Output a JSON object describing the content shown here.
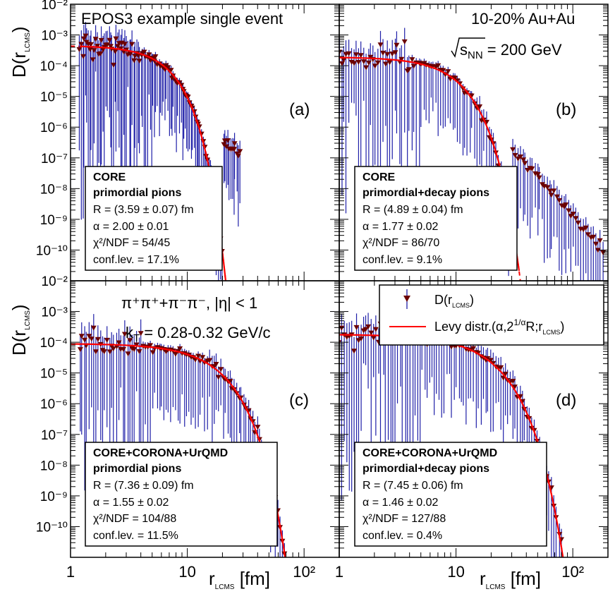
{
  "figure": {
    "title_text": "EPOS3 example single event",
    "system_text": "10-20% Au+Au",
    "energy_prefix": "s",
    "energy_sub": "NN",
    "energy_value": " = 200 GeV",
    "particles_text": "π⁺π⁺+π⁻π⁻, |η| < 1",
    "kt_prefix": "k",
    "kt_sub": "T",
    "kt_value": " = 0.28-0.32 GeV/c",
    "ylabel_main": "D(r",
    "ylabel_sub": "LCMS",
    "ylabel_close": ")",
    "xlabel_main": "r",
    "xlabel_sub": "LCMS",
    "xlabel_unit": " [fm]",
    "legend": {
      "points_main": "D(r",
      "points_sub": "LCMS",
      "points_close": ")",
      "fit_text": "Levy distr.(α,2",
      "fit_sup": "1/α",
      "fit_text2": "R;r",
      "fit_sub": "LCMS",
      "fit_close": ")"
    },
    "colors": {
      "points": "#6b0000",
      "errors": "#1f1fa8",
      "fit": "#ff0000",
      "frame": "#000000"
    }
  },
  "chart_data": [
    {
      "type": "scatter",
      "panel_label": "(a)",
      "x_scale": "log",
      "y_scale": "log",
      "xlim": [
        1,
        200
      ],
      "ylim": [
        1e-11,
        0.01
      ],
      "x_ticks": [
        {
          "v": 1,
          "t": "1"
        },
        {
          "v": 10,
          "t": "10"
        },
        {
          "v": 100,
          "t": "10²"
        }
      ],
      "y_ticks": [
        "10⁻¹⁰",
        "10⁻⁹",
        "10⁻⁸",
        "10⁻⁷",
        "10⁻⁶",
        "10⁻⁵",
        "10⁻⁴",
        "10⁻³",
        "10⁻²"
      ],
      "fit": {
        "R": 3.59,
        "alpha": 2.0,
        "N": 0.00045,
        "fit_range": [
          1.2,
          25
        ]
      },
      "points_range": [
        1.2,
        28
      ],
      "info": {
        "line1": "CORE",
        "line2": "primordial pions",
        "line3": "R = (3.59 ± 0.07) fm",
        "line4": "α = 2.00 ± 0.01",
        "line5": "χ²/NDF = 54/45",
        "line6": "conf.lev. = 17.1%"
      }
    },
    {
      "type": "scatter",
      "panel_label": "(b)",
      "x_scale": "log",
      "y_scale": "log",
      "xlim": [
        1,
        200
      ],
      "ylim": [
        1e-11,
        0.01
      ],
      "x_ticks": [
        {
          "v": 1,
          "t": "1"
        },
        {
          "v": 10,
          "t": "10"
        },
        {
          "v": 100,
          "t": "10²"
        }
      ],
      "y_ticks": [
        "10⁻¹⁰",
        "10⁻⁹",
        "10⁻⁸",
        "10⁻⁷",
        "10⁻⁶",
        "10⁻⁵",
        "10⁻⁴",
        "10⁻³",
        "10⁻²"
      ],
      "fit": {
        "R": 4.89,
        "alpha": 1.77,
        "N": 0.00019,
        "fit_range": [
          1.0,
          35
        ]
      },
      "points_range": [
        1.0,
        180
      ],
      "info": {
        "line1": "CORE",
        "line2": "primordial+decay pions",
        "line3": "R = (4.89 ± 0.04) fm",
        "line4": "α = 1.77 ± 0.02",
        "line5": "χ²/NDF = 86/70",
        "line6": "conf.lev. = 9.1%"
      }
    },
    {
      "type": "scatter",
      "panel_label": "(c)",
      "x_scale": "log",
      "y_scale": "log",
      "xlim": [
        1,
        200
      ],
      "ylim": [
        1e-11,
        0.01
      ],
      "x_ticks": [
        {
          "v": 1,
          "t": "1"
        },
        {
          "v": 10,
          "t": "10"
        },
        {
          "v": 100,
          "t": "10²"
        }
      ],
      "y_ticks": [
        "10⁻¹⁰",
        "10⁻⁹",
        "10⁻⁸",
        "10⁻⁷",
        "10⁻⁶",
        "10⁻⁵",
        "10⁻⁴",
        "10⁻³",
        "10⁻²"
      ],
      "fit": {
        "R": 7.36,
        "alpha": 1.55,
        "N": 9e-05,
        "fit_range": [
          1.0,
          200
        ]
      },
      "points_range": [
        1.2,
        160
      ],
      "info": {
        "line1": "CORE+CORONA+UrQMD",
        "line2": "primordial pions",
        "line3": "R = (7.36 ± 0.09) fm",
        "line4": "α = 1.55 ± 0.02",
        "line5": "χ²/NDF = 104/88",
        "line6": "conf.lev. = 11.5%"
      }
    },
    {
      "type": "scatter",
      "panel_label": "(d)",
      "x_scale": "log",
      "y_scale": "log",
      "xlim": [
        1,
        200
      ],
      "ylim": [
        1e-11,
        0.01
      ],
      "x_ticks": [
        {
          "v": 1,
          "t": "1"
        },
        {
          "v": 10,
          "t": "10"
        },
        {
          "v": 100,
          "t": "10²"
        }
      ],
      "y_ticks": [
        "10⁻¹⁰",
        "10⁻⁹",
        "10⁻⁸",
        "10⁻⁷",
        "10⁻⁶",
        "10⁻⁵",
        "10⁻⁴",
        "10⁻³",
        "10⁻²"
      ],
      "fit": {
        "R": 7.45,
        "alpha": 1.46,
        "N": 0.00018,
        "fit_range": [
          1.0,
          200
        ]
      },
      "points_range": [
        1.0,
        190
      ],
      "info": {
        "line1": "CORE+CORONA+UrQMD",
        "line2": "primordial+decay pions",
        "line3": "R = (7.45 ± 0.06) fm",
        "line4": "α = 1.46 ± 0.02",
        "line5": "χ²/NDF = 127/88",
        "line6": "conf.lev. = 0.4%"
      }
    }
  ]
}
